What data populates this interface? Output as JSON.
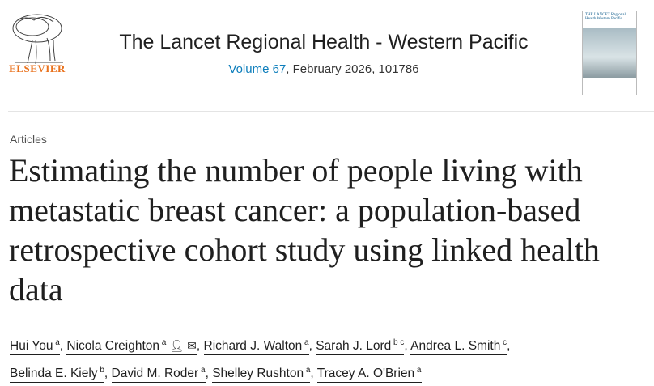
{
  "publisher": {
    "logo_text": "ELSEVIER",
    "colors": {
      "brand": "#e9711c",
      "link": "#0c7dbb"
    }
  },
  "journal": {
    "title": "The Lancet Regional Health - Western Pacific",
    "volume_link": "Volume 67",
    "issue_rest": ", February 2026, 101786",
    "cover_text": "THE LANCET Regional Health Western Pacific"
  },
  "article": {
    "type": "Articles",
    "title": "Estimating the number of people living with metastatic breast cancer: a population-based retrospective cohort study using linked health data"
  },
  "authors": [
    {
      "name": "Hui You",
      "aff": "a"
    },
    {
      "name": "Nicola Creighton",
      "aff": "a",
      "icons": [
        "person-icon",
        "email-icon"
      ]
    },
    {
      "name": "Richard J. Walton",
      "aff": "a"
    },
    {
      "name": "Sarah J. Lord",
      "aff": "b c"
    },
    {
      "name": "Andrea L. Smith",
      "aff": "c"
    },
    {
      "name": "Belinda E. Kiely",
      "aff": "b"
    },
    {
      "name": "David M. Roder",
      "aff": "a"
    },
    {
      "name": "Shelley Rushton",
      "aff": "a"
    },
    {
      "name": "Tracey A. O'Brien",
      "aff": "a"
    }
  ]
}
